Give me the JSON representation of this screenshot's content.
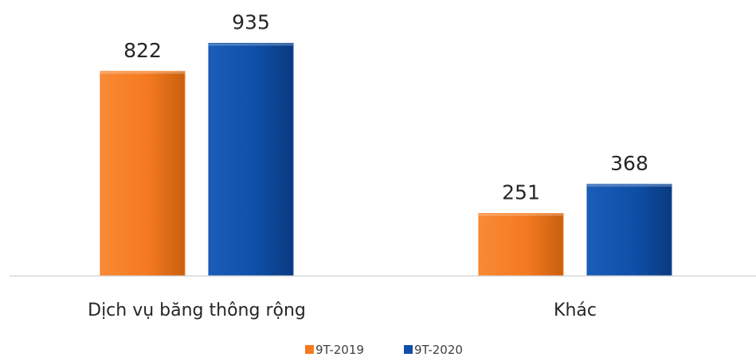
{
  "chart_data": {
    "type": "bar",
    "categories": [
      "Dịch vụ băng thông rộng",
      "Khác"
    ],
    "series": [
      {
        "name": "9T-2019",
        "color": "#F47A20",
        "values": [
          822,
          251
        ]
      },
      {
        "name": "9T-2020",
        "color": "#0F4FA8",
        "values": [
          935,
          368
        ]
      }
    ],
    "ylim": [
      0,
      1000
    ],
    "grid": false,
    "legend": "bottom-center",
    "data_labels": true
  }
}
